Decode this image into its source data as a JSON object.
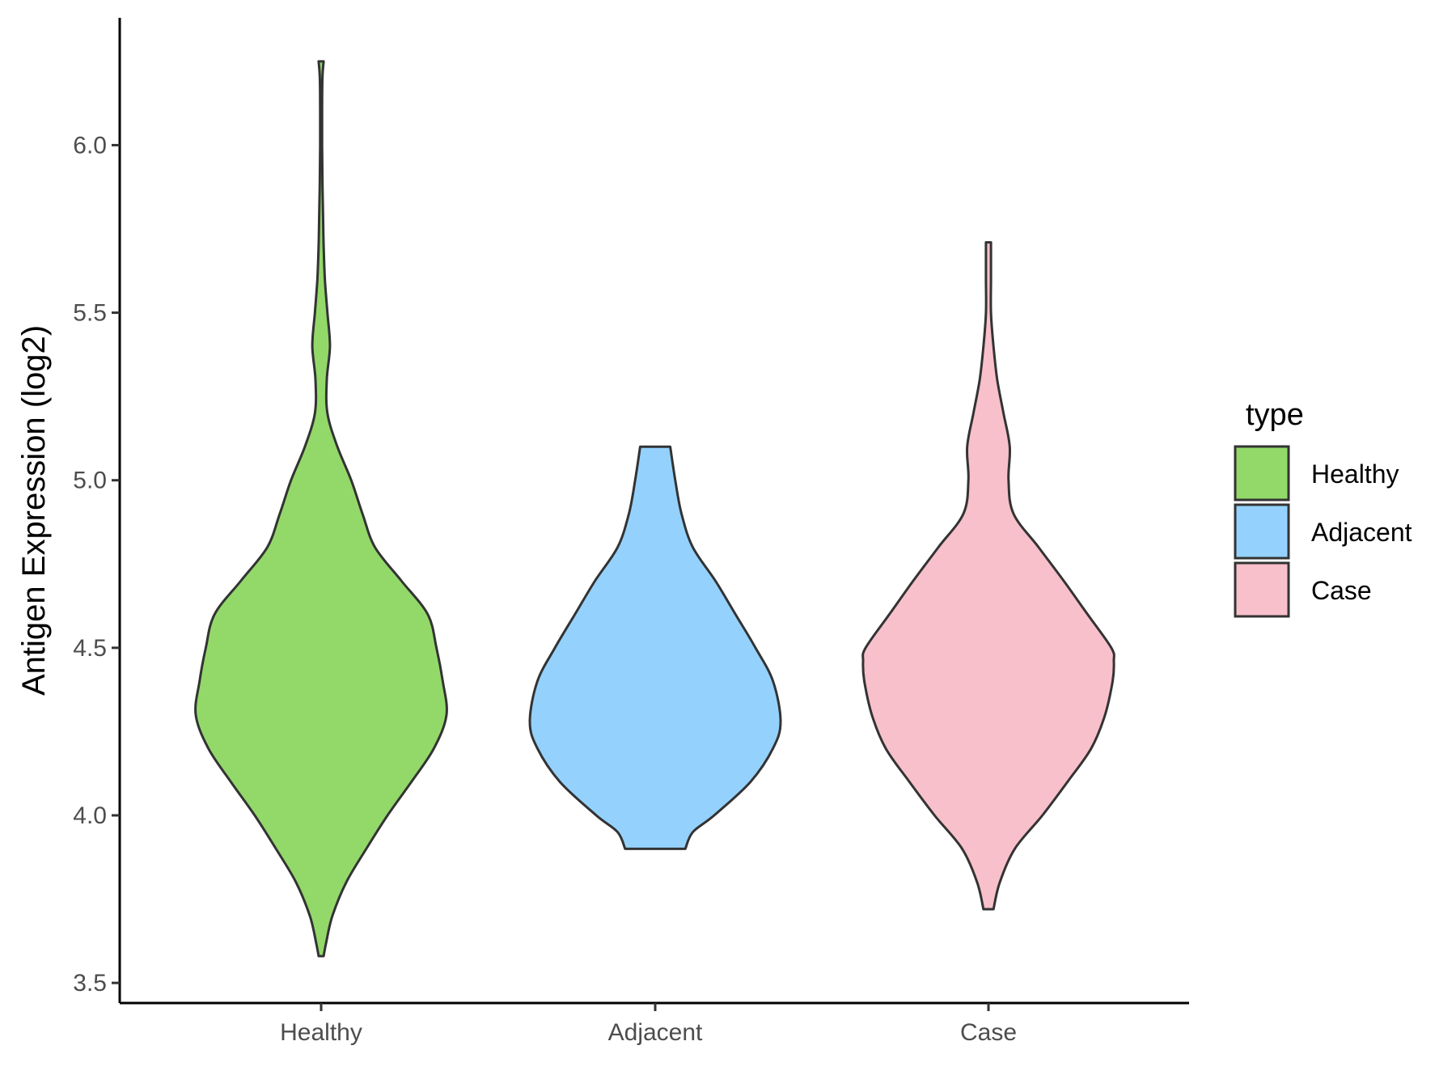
{
  "chart_data": {
    "type": "violin",
    "title": "",
    "xlabel": "",
    "ylabel": "Antigen Expression (log2)",
    "ylim": [
      3.44,
      6.38
    ],
    "yticks": [
      3.5,
      4.0,
      4.5,
      5.0,
      5.5,
      6.0
    ],
    "ytick_labels": [
      "3.5",
      "4.0",
      "4.5",
      "5.0",
      "5.5",
      "6.0"
    ],
    "categories": [
      "Healthy",
      "Adjacent",
      "Case"
    ],
    "grid": false,
    "legend": {
      "title": "type",
      "position": "right",
      "entries": [
        "Healthy",
        "Adjacent",
        "Case"
      ]
    },
    "colors": {
      "Healthy": "#93d96a",
      "Adjacent": "#94d2fd",
      "Case": "#f7c0cb",
      "outline": "#333333"
    },
    "series": [
      {
        "category": "Healthy",
        "min": 3.58,
        "max": 6.25,
        "density": [
          [
            3.58,
            0.02
          ],
          [
            3.62,
            0.04
          ],
          [
            3.7,
            0.09
          ],
          [
            3.8,
            0.2
          ],
          [
            3.9,
            0.36
          ],
          [
            4.0,
            0.53
          ],
          [
            4.1,
            0.72
          ],
          [
            4.2,
            0.9
          ],
          [
            4.3,
            1.0
          ],
          [
            4.4,
            0.97
          ],
          [
            4.5,
            0.92
          ],
          [
            4.6,
            0.85
          ],
          [
            4.7,
            0.64
          ],
          [
            4.8,
            0.43
          ],
          [
            4.9,
            0.33
          ],
          [
            5.0,
            0.24
          ],
          [
            5.1,
            0.13
          ],
          [
            5.2,
            0.05
          ],
          [
            5.3,
            0.045
          ],
          [
            5.4,
            0.07
          ],
          [
            5.5,
            0.05
          ],
          [
            5.6,
            0.03
          ],
          [
            5.7,
            0.02
          ],
          [
            5.8,
            0.015
          ],
          [
            5.9,
            0.01
          ],
          [
            6.0,
            0.008
          ],
          [
            6.1,
            0.008
          ],
          [
            6.2,
            0.01
          ],
          [
            6.25,
            0.02
          ]
        ]
      },
      {
        "category": "Adjacent",
        "min": 3.9,
        "max": 5.1,
        "density": [
          [
            3.9,
            0.24
          ],
          [
            3.95,
            0.3
          ],
          [
            4.0,
            0.47
          ],
          [
            4.1,
            0.76
          ],
          [
            4.2,
            0.94
          ],
          [
            4.28,
            1.0
          ],
          [
            4.4,
            0.94
          ],
          [
            4.5,
            0.8
          ],
          [
            4.6,
            0.64
          ],
          [
            4.7,
            0.48
          ],
          [
            4.8,
            0.3
          ],
          [
            4.9,
            0.21
          ],
          [
            5.0,
            0.16
          ],
          [
            5.1,
            0.12
          ]
        ]
      },
      {
        "category": "Case",
        "min": 3.72,
        "max": 5.71,
        "density": [
          [
            3.72,
            0.04
          ],
          [
            3.8,
            0.09
          ],
          [
            3.9,
            0.21
          ],
          [
            4.0,
            0.43
          ],
          [
            4.1,
            0.63
          ],
          [
            4.2,
            0.82
          ],
          [
            4.3,
            0.93
          ],
          [
            4.4,
            0.99
          ],
          [
            4.46,
            1.0
          ],
          [
            4.5,
            0.98
          ],
          [
            4.6,
            0.79
          ],
          [
            4.7,
            0.6
          ],
          [
            4.8,
            0.4
          ],
          [
            4.9,
            0.2
          ],
          [
            5.0,
            0.16
          ],
          [
            5.1,
            0.17
          ],
          [
            5.2,
            0.12
          ],
          [
            5.3,
            0.07
          ],
          [
            5.4,
            0.04
          ],
          [
            5.5,
            0.02
          ],
          [
            5.6,
            0.02
          ],
          [
            5.71,
            0.02
          ]
        ]
      }
    ]
  }
}
